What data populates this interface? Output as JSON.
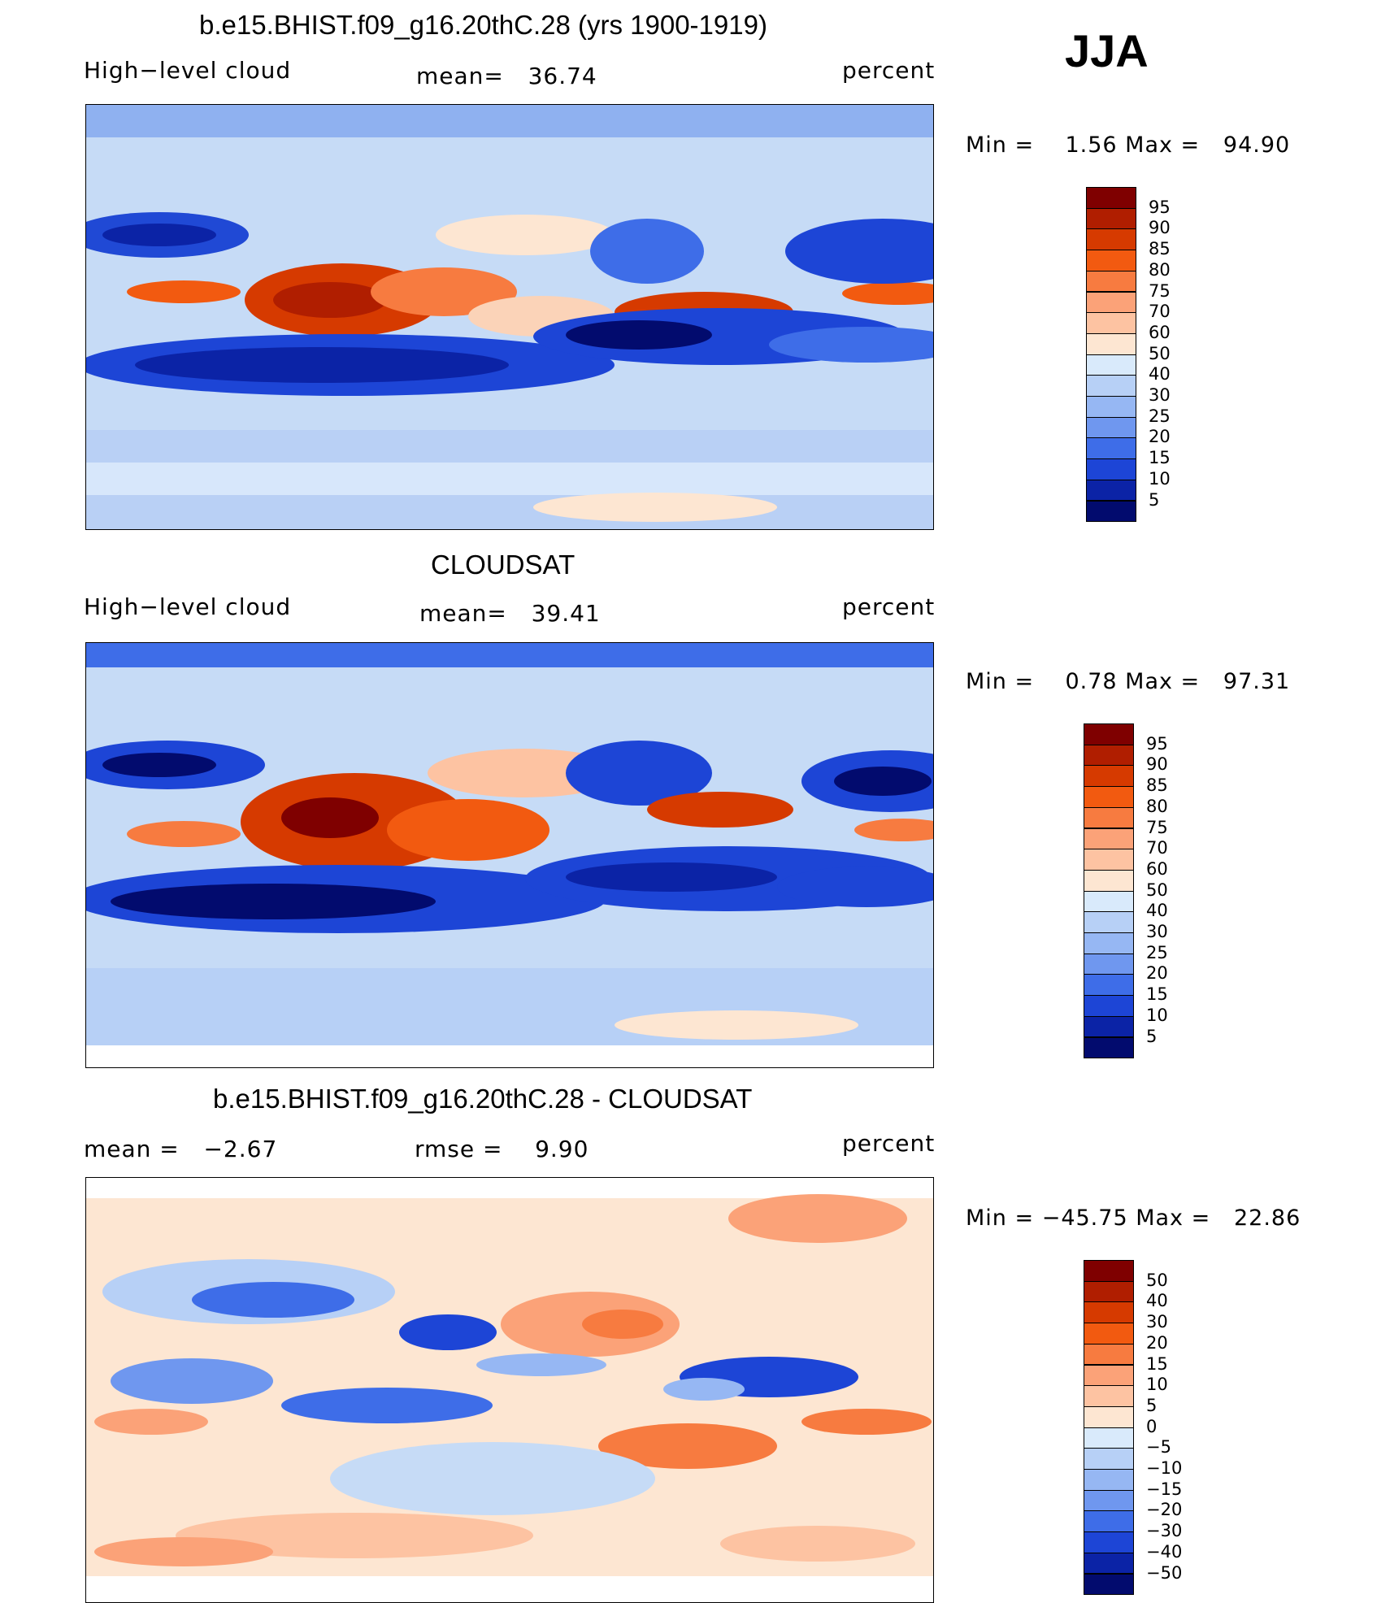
{
  "season": "JJA",
  "panels": [
    {
      "title": "b.e15.BHIST.f09_g16.20thC.28 (yrs 1900-1919)",
      "left_label": "High−level cloud",
      "center_label": "mean=   36.74",
      "right_label": "percent",
      "minmax": "Min =    1.56 Max =   94.90",
      "colorbar_labels": [
        "95",
        "90",
        "85",
        "80",
        "75",
        "70",
        "60",
        "50",
        "40",
        "30",
        "25",
        "20",
        "15",
        "10",
        "5"
      ],
      "colorbar_colors": [
        "#7f0000",
        "#b01e00",
        "#d63a00",
        "#f25a10",
        "#f77b40",
        "#fba278",
        "#fdc3a2",
        "#fde6d2",
        "#d9eafb",
        "#b7d0f6",
        "#96b7f3",
        "#6f97ef",
        "#3e6de8",
        "#1d45d6",
        "#0b23a6",
        "#020b6e"
      ]
    },
    {
      "title": "CLOUDSAT",
      "left_label": "High−level cloud",
      "center_label": "mean=   39.41",
      "right_label": "percent",
      "minmax": "Min =    0.78 Max =   97.31",
      "colorbar_labels": [
        "95",
        "90",
        "85",
        "80",
        "75",
        "70",
        "60",
        "50",
        "40",
        "30",
        "25",
        "20",
        "15",
        "10",
        "5"
      ],
      "colorbar_colors": [
        "#7f0000",
        "#b01e00",
        "#d63a00",
        "#f25a10",
        "#f77b40",
        "#fba278",
        "#fdc3a2",
        "#fde6d2",
        "#d9eafb",
        "#b7d0f6",
        "#96b7f3",
        "#6f97ef",
        "#3e6de8",
        "#1d45d6",
        "#0b23a6",
        "#020b6e"
      ]
    },
    {
      "title": "b.e15.BHIST.f09_g16.20thC.28 - CLOUDSAT",
      "left_label": "mean =   −2.67",
      "center_label": "rmse =    9.90",
      "right_label": "percent",
      "minmax": "Min = −45.75 Max =   22.86",
      "colorbar_labels": [
        "50",
        "40",
        "30",
        "20",
        "15",
        "10",
        "5",
        "0",
        "−5",
        "−10",
        "−15",
        "−20",
        "−30",
        "−40",
        "−50"
      ],
      "colorbar_colors": [
        "#7f0000",
        "#b01e00",
        "#d63a00",
        "#f25a10",
        "#f77b40",
        "#fba278",
        "#fdc3a2",
        "#fde6d2",
        "#d9eafb",
        "#b7d0f6",
        "#96b7f3",
        "#6f97ef",
        "#3e6de8",
        "#1d45d6",
        "#0b23a6",
        "#020b6e"
      ]
    }
  ]
}
